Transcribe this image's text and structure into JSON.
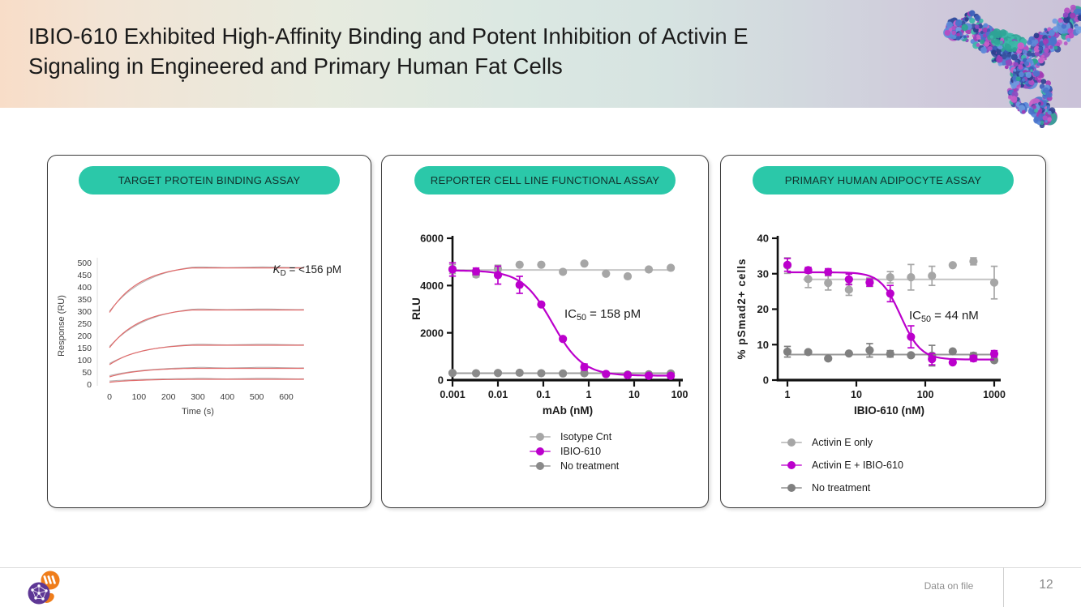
{
  "slide": {
    "title_line1": "IBIO-610 Exhibited High-Affinity Binding and Potent Inhibition of Activin E",
    "title_line2": "Signaling in Engineered and Primary Human Fat Cells",
    "accent_teal": "#2bc8a9",
    "magenta": "#bb00cc",
    "footer": {
      "note": "Data on file",
      "page": "12"
    }
  },
  "panels": [
    {
      "header": "TARGET PROTEIN BINDING ASSAY"
    },
    {
      "header": "REPORTER CELL LINE FUNCTIONAL ASSAY"
    },
    {
      "header": "PRIMARY HUMAN ADIPOCYTE ASSAY"
    }
  ],
  "chart_data": [
    {
      "type": "line",
      "title": "SPR sensorgram",
      "xlabel": "Time (s)",
      "ylabel": "Response (RU)",
      "xlim": [
        0,
        660
      ],
      "ylim": [
        0,
        500
      ],
      "x_ticks": [
        0,
        100,
        200,
        300,
        400,
        500,
        600
      ],
      "y_ticks": [
        500,
        450,
        400,
        350,
        300,
        250,
        200,
        150,
        100,
        50,
        0
      ],
      "association_end_s": 280,
      "traces": [
        {
          "start_RU": 295,
          "plateau_RU": 478
        },
        {
          "start_RU": 150,
          "plateau_RU": 305
        },
        {
          "start_RU": 80,
          "plateau_RU": 160
        },
        {
          "start_RU": 30,
          "plateau_RU": 65
        },
        {
          "start_RU": 8,
          "plateau_RU": 20
        }
      ],
      "fit_color": "#e06a6a",
      "data_color": "#b7aeae",
      "annotation": {
        "pre": "K",
        "sub": "D",
        "post": " = <156 pM",
        "italic_pre": true
      }
    },
    {
      "type": "scatter",
      "xscale": "log",
      "xlabel": "mAb (nM)",
      "ylabel": "RLU",
      "ylim": [
        0,
        6000
      ],
      "x_ticks": [
        "0.001",
        "0.01",
        "0.1",
        "1",
        "10",
        "100"
      ],
      "y_ticks": [
        0,
        2000,
        4000,
        6000
      ],
      "x": [
        0.001,
        0.0033,
        0.01,
        0.03,
        0.09,
        0.27,
        0.8,
        2.4,
        7.2,
        21,
        64
      ],
      "series": [
        {
          "name": "Isotype Cnt",
          "color": "#a6a6a6",
          "line_color": "#c6c6c6",
          "style": "flat",
          "flat_y": 4660,
          "flat_from": 0.001,
          "values": [
            4700,
            4470,
            4700,
            4880,
            4880,
            4580,
            4930,
            4500,
            4390,
            4680,
            4750
          ],
          "err": [
            190,
            110,
            160,
            0,
            0,
            0,
            0,
            0,
            0,
            0,
            0
          ]
        },
        {
          "name": "IBIO-610",
          "color": "#bb00cc",
          "line_color": "#bb00cc",
          "style": "sigmoid",
          "fit": {
            "top": 4640,
            "bottom": 185,
            "ic50_nM": 0.158,
            "hill": 1.3
          },
          "values": [
            4680,
            4600,
            4440,
            4030,
            3200,
            1740,
            550,
            260,
            210,
            185,
            185
          ],
          "err": [
            280,
            140,
            380,
            360,
            0,
            0,
            130,
            0,
            90,
            60,
            100
          ]
        },
        {
          "name": "No treatment",
          "color": "#8a8a8a",
          "line_color": "#9d9d9d",
          "style": "flat",
          "flat_y": 290,
          "flat_from": 0.001,
          "values": [
            300,
            290,
            300,
            310,
            290,
            280,
            290,
            250,
            235,
            245,
            280
          ],
          "err": [
            0,
            0,
            0,
            0,
            0,
            0,
            0,
            0,
            0,
            0,
            0
          ]
        }
      ],
      "legend": [
        {
          "label": "Isotype Cnt",
          "color": "#a6a6a6"
        },
        {
          "label": "IBIO-610",
          "color": "#bb00cc"
        },
        {
          "label": "No treatment",
          "color": "#8a8a8a"
        }
      ],
      "annotation": {
        "pre": "IC",
        "sub": "50",
        "post": " = 158 pM",
        "italic_pre": false
      }
    },
    {
      "type": "scatter",
      "xscale": "log",
      "xlabel": "IBIO-610 (nM)",
      "ylabel": "% pSmad2+ cells",
      "ylim": [
        0,
        40
      ],
      "x_ticks": [
        "1",
        "10",
        "100",
        "1000"
      ],
      "y_ticks": [
        0,
        10,
        20,
        30,
        40
      ],
      "x": [
        1,
        2,
        3.9,
        7.8,
        15.6,
        31,
        62,
        125,
        250,
        500,
        1000
      ],
      "series": [
        {
          "name": "Activin E only",
          "color": "#a6a6a6",
          "line_color": "#c4c4c4",
          "style": "flat",
          "flat_y": 28.4,
          "flat_from": 1.7,
          "values": [
            32.3,
            28.5,
            27.4,
            25.5,
            27.6,
            29,
            29,
            29.4,
            32.4,
            33.5,
            27.5
          ],
          "err": [
            2.2,
            2.4,
            2,
            1.6,
            1.2,
            1.6,
            3.6,
            2.7,
            0,
            1,
            4.6
          ]
        },
        {
          "name": "Activin E + IBIO-610",
          "color": "#bb00cc",
          "line_color": "#bb00cc",
          "style": "sigmoid",
          "fit": {
            "top": 30.4,
            "bottom": 5.8,
            "ic50_nM": 44,
            "hill": 3
          },
          "values": [
            32.5,
            31,
            30.5,
            28.4,
            27.5,
            24.4,
            12.2,
            5.9,
            5,
            6.1,
            7.4
          ],
          "err": [
            1.8,
            0.8,
            0.9,
            1.5,
            1,
            2.3,
            3.1,
            1.6,
            0,
            0.8,
            0.9
          ]
        },
        {
          "name": "No treatment",
          "color": "#808080",
          "line_color": "#979797",
          "style": "flat",
          "flat_y": 7.2,
          "flat_from": 1,
          "values": [
            8,
            7.9,
            6.1,
            7.5,
            8.4,
            7.4,
            7,
            6.9,
            8.1,
            6.9,
            5.6
          ],
          "err": [
            1.5,
            0,
            0,
            0,
            1.9,
            0.9,
            0,
            2.9,
            0,
            0.8,
            0
          ]
        }
      ],
      "legend": [
        {
          "label": "Activin E only",
          "color": "#a6a6a6"
        },
        {
          "label": "Activin E + IBIO-610",
          "color": "#bb00cc"
        },
        {
          "label": "No treatment",
          "color": "#808080"
        }
      ],
      "annotation": {
        "pre": "IC",
        "sub": "50",
        "post": " = 44 nM",
        "italic_pre": false
      }
    }
  ]
}
